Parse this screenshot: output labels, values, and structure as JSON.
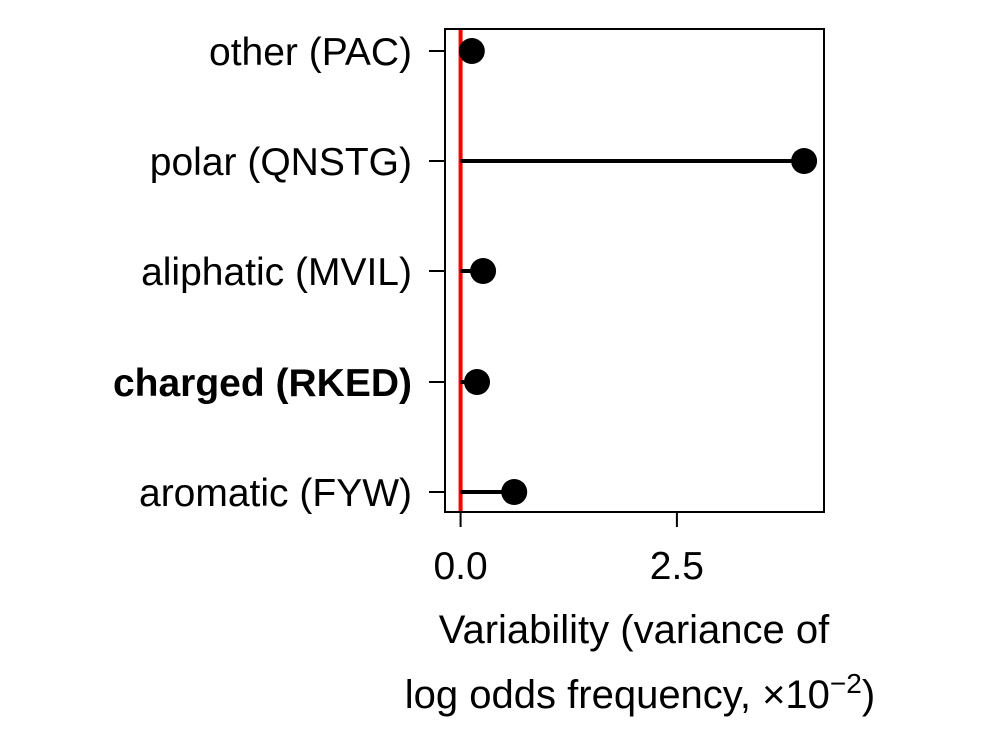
{
  "chart_data": {
    "type": "lollipop",
    "categories": [
      "other (PAC)",
      "polar (QNSTG)",
      "aliphatic (MVIL)",
      "charged (RKED)",
      "aromatic (FYW)"
    ],
    "highlight_category": "charged (RKED)",
    "highlight_color": "#a64d9a",
    "values": [
      0.13,
      3.97,
      0.26,
      0.19,
      0.62
    ],
    "baseline": 0,
    "baseline_color": "#ff0000",
    "xlim": [
      -0.18,
      4.2
    ],
    "xticks": [
      0.0,
      2.5
    ],
    "xtick_labels": [
      "0.0",
      "2.5"
    ],
    "xlabel": {
      "line1": "Variability (variance of",
      "line2_text": "log odds frequency, ×10",
      "line2_superscript": "−2",
      "line2_end": ")"
    },
    "grid": false,
    "marker_color": "#000000"
  }
}
